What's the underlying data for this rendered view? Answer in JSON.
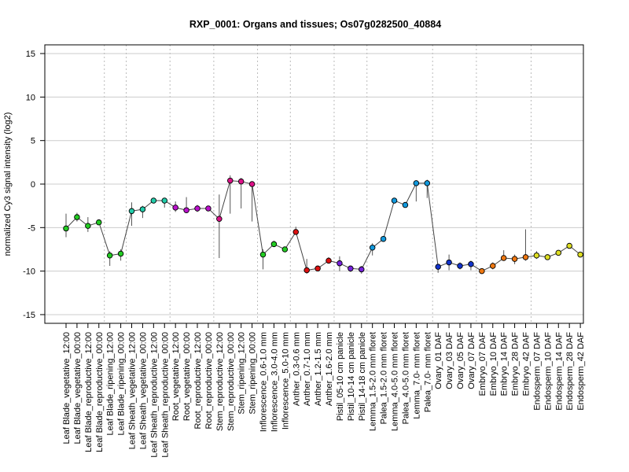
{
  "chart_data": {
    "type": "line",
    "title": "RXP_0001: Organs and tissues; Os07g0282500_40884",
    "xlabel": "",
    "ylabel": "normalized Cy3 signal intensity (log2)",
    "ylim": [
      -16,
      16
    ],
    "yticks": [
      -15,
      -10,
      -5,
      0,
      5,
      10,
      15
    ],
    "categories": [
      "Leaf Blade_vegetative_12:00",
      "Leaf Blade_vegetative_00:00",
      "Leaf Blade_reproductive_12:00",
      "Leaf Blade_reproductive_00:00",
      "Leaf Blade_ripening_12:00",
      "Leaf Blade_ripening_00:00",
      "Leaf Sheath_vegetative_12:00",
      "Leaf Sheath_vegetative_00:00",
      "Leaf Sheath_reproductive_12:00",
      "Leaf Sheath_reproductive_00:00",
      "Root_vegetative_12:00",
      "Root_vegetative_00:00",
      "Root_reproductive_12:00",
      "Root_reproductive_00:00",
      "Stem_reproductive_12:00",
      "Stem_reproductive_00:00",
      "Stem_ripening_12:00",
      "Stem_ripening_00:00",
      "Inflorescence_0.6-1.0 mm",
      "Inflorescence_3.0-4.0 mm",
      "Inflorescence_5.0-10 mm",
      "Anther_0.3-0.6 mm",
      "Anther_0.7-1.0 mm",
      "Anther_1.2-1.5 mm",
      "Anther_1.6-2.0 mm",
      "Pistil_05-10 cm panicle",
      "Pistil_10-14 cm panicle",
      "Pistil_14-18 cm panicle",
      "Lemma_1.5-2.0 mm floret",
      "Palea_1.5-2.0 mm floret",
      "Lemma_4.0-5.0 mm floret",
      "Palea_4.0-5.0 mm floret",
      "Lemma_7.0- mm floret",
      "Palea_7.0- mm floret",
      "Ovary_01 DAF",
      "Ovary_03 DAF",
      "Ovary_05 DAF",
      "Ovary_07 DAF",
      "Embryo_07 DAF",
      "Embryo_10 DAF",
      "Embryo_14 DAF",
      "Embryo_28 DAF",
      "Embryo_42 DAF",
      "Endosperm_07 DAF",
      "Endosperm_10 DAF",
      "Endosperm_14 DAF",
      "Endosperm_28 DAF",
      "Endosperm_42 DAF"
    ],
    "values": [
      -5.1,
      -3.8,
      -4.8,
      -4.4,
      -8.2,
      -8.0,
      -3.1,
      -2.9,
      -1.9,
      -1.9,
      -2.7,
      -3.0,
      -2.8,
      -2.8,
      -4.0,
      0.4,
      0.3,
      0.0,
      -8.1,
      -6.9,
      -7.5,
      -5.5,
      -9.9,
      -9.7,
      -8.8,
      -9.1,
      -9.7,
      -9.8,
      -7.3,
      -6.3,
      -1.9,
      -2.4,
      0.1,
      0.1,
      -9.5,
      -9.0,
      -9.4,
      -9.2,
      -10.0,
      -9.4,
      -8.5,
      -8.6,
      -8.4,
      -8.2,
      -8.4,
      -7.9,
      -7.1,
      -8.1
    ],
    "error_low": [
      -6.1,
      -4.3,
      -5.5,
      -4.6,
      -9.4,
      -8.8,
      -4.8,
      -3.9,
      -2.1,
      -2.7,
      -3.2,
      -3.2,
      -3.2,
      -3.0,
      -8.5,
      -3.4,
      -2.8,
      -4.3,
      -9.8,
      -7.2,
      -7.7,
      -5.8,
      -10.3,
      -9.9,
      -9.0,
      -10.0,
      -10.1,
      -10.3,
      -8.2,
      -6.6,
      -2.1,
      -2.6,
      -2.0,
      -1.6,
      -10.2,
      -9.9,
      -9.8,
      -9.9,
      -10.1,
      -9.8,
      -8.8,
      -9.2,
      -8.8,
      -8.6,
      -8.6,
      -8.2,
      -7.4,
      -8.3
    ],
    "error_high": [
      -3.4,
      -3.3,
      -3.8,
      -4.1,
      -7.7,
      -7.5,
      -2.1,
      -2.5,
      -1.6,
      -1.7,
      -2.0,
      -1.5,
      -2.4,
      -2.6,
      -1.2,
      1.0,
      0.7,
      0.3,
      -7.5,
      -6.5,
      -7.2,
      -4.9,
      -8.6,
      -9.4,
      -8.4,
      -8.3,
      -9.5,
      -9.4,
      -6.8,
      -6.0,
      -1.7,
      -2.2,
      0.4,
      0.5,
      -9.2,
      -8.1,
      -9.0,
      -8.8,
      -9.8,
      -9.0,
      -7.6,
      -8.1,
      -5.2,
      -7.7,
      -8.1,
      -7.6,
      -6.9,
      -7.8
    ],
    "colors": [
      "#22cc22",
      "#22cc22",
      "#22cc22",
      "#22cc22",
      "#22cc22",
      "#22cc22",
      "#22ccaa",
      "#22ccaa",
      "#22ccaa",
      "#22ccaa",
      "#bb11cc",
      "#bb11cc",
      "#bb11cc",
      "#bb11cc",
      "#dd1188",
      "#dd1188",
      "#dd1188",
      "#dd1188",
      "#22cc22",
      "#22cc22",
      "#22cc22",
      "#dd1111",
      "#dd1111",
      "#dd1111",
      "#dd1111",
      "#7722dd",
      "#7722dd",
      "#7722dd",
      "#1199dd",
      "#1199dd",
      "#1199dd",
      "#1199dd",
      "#1199dd",
      "#1199dd",
      "#1133cc",
      "#1133cc",
      "#1133cc",
      "#1133cc",
      "#ee7711",
      "#ee7711",
      "#ee7711",
      "#ee7711",
      "#ee7711",
      "#dddd22",
      "#dddd22",
      "#dddd22",
      "#dddd22",
      "#dddd22"
    ],
    "group_separators_after": [
      3,
      5,
      9,
      13,
      17,
      20,
      24,
      27,
      33,
      37,
      42
    ],
    "grid": true,
    "legend": "none"
  }
}
